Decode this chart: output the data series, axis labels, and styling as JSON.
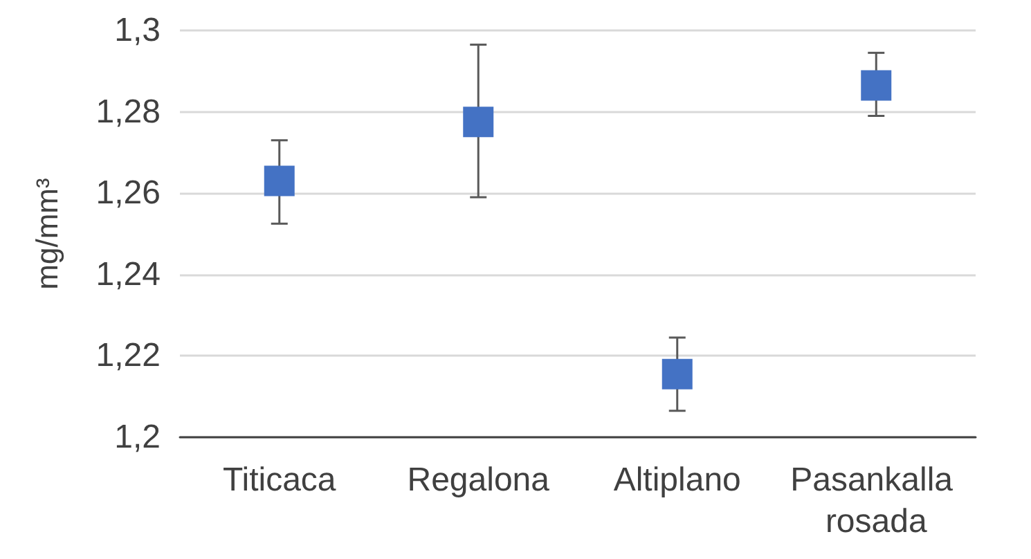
{
  "chart_data": {
    "type": "scatter",
    "ylabel": "mg/mm³",
    "categories": [
      "Titicaca",
      "Regalona",
      "Altiplano",
      "Pasankalla rosada"
    ],
    "series": [
      {
        "color": "#4472c4",
        "values": [
          1.263,
          1.2775,
          1.2155,
          1.2865
        ],
        "errors": [
          [
            1.2525,
            1.273
          ],
          [
            1.259,
            1.2965
          ],
          [
            1.2065,
            1.2245
          ],
          [
            1.279,
            1.2945
          ]
        ]
      }
    ],
    "ylim": [
      1.2,
      1.3
    ],
    "yticks": [
      {
        "value": 1.2,
        "label": "1,2"
      },
      {
        "value": 1.22,
        "label": "1,22"
      },
      {
        "value": 1.24,
        "label": "1,24"
      },
      {
        "value": 1.26,
        "label": "1,26"
      },
      {
        "value": 1.28,
        "label": "1,28"
      },
      {
        "value": 1.3,
        "label": "1,3"
      }
    ],
    "grid": "y",
    "marker": "square"
  }
}
